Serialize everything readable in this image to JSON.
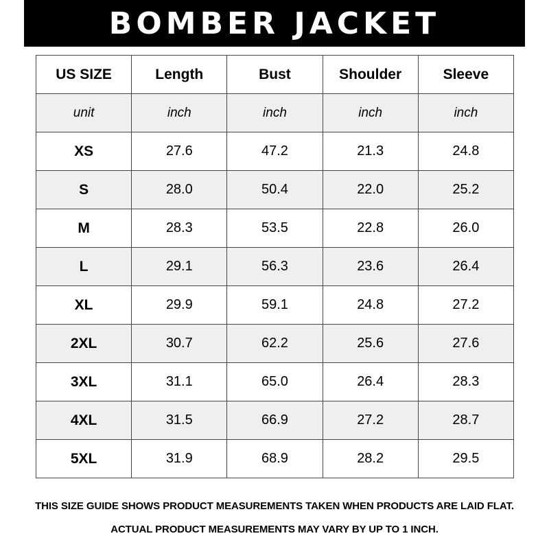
{
  "title": "BOMBER JACKET",
  "headers": [
    "US SIZE",
    "Length",
    "Bust",
    "Shoulder",
    "Sleeve"
  ],
  "units": [
    "unit",
    "inch",
    "inch",
    "inch",
    "inch"
  ],
  "rows": [
    [
      "XS",
      "27.6",
      "47.2",
      "21.3",
      "24.8"
    ],
    [
      "S",
      "28.0",
      "50.4",
      "22.0",
      "25.2"
    ],
    [
      "M",
      "28.3",
      "53.5",
      "22.8",
      "26.0"
    ],
    [
      "L",
      "29.1",
      "56.3",
      "23.6",
      "26.4"
    ],
    [
      "XL",
      "29.9",
      "59.1",
      "24.8",
      "27.2"
    ],
    [
      "2XL",
      "30.7",
      "62.2",
      "25.6",
      "27.6"
    ],
    [
      "3XL",
      "31.1",
      "65.0",
      "26.4",
      "28.3"
    ],
    [
      "4XL",
      "31.5",
      "66.9",
      "27.2",
      "28.7"
    ],
    [
      "5XL",
      "31.9",
      "68.9",
      "28.2",
      "29.5"
    ]
  ],
  "footer": {
    "line1": "THIS SIZE GUIDE SHOWS PRODUCT MEASUREMENTS TAKEN WHEN PRODUCTS ARE LAID FLAT.",
    "line2": "ACTUAL PRODUCT MEASUREMENTS MAY VARY BY UP TO 1 INCH."
  },
  "colors": {
    "banner": "#000000",
    "alt_row": "#efefef",
    "grid": "#444444"
  }
}
